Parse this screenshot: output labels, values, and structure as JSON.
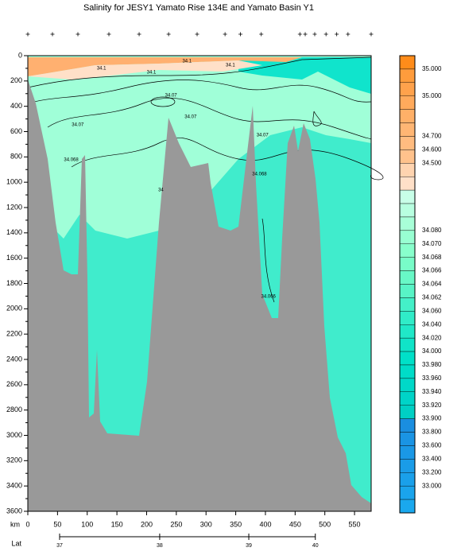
{
  "chart_data": {
    "type": "contour",
    "title": "Salinity for JESY1 Yamato Rise 134E and Yamato Basin Y1",
    "xlabel": "km",
    "x2label": "Lat",
    "xlim": [
      0,
      578
    ],
    "ylim": [
      0,
      3600
    ],
    "y_inverted": true,
    "xticks": [
      0,
      50,
      100,
      150,
      200,
      250,
      300,
      350,
      400,
      450,
      500,
      550
    ],
    "yticks": [
      0,
      200,
      400,
      600,
      800,
      1000,
      1200,
      1400,
      1600,
      1800,
      2000,
      2200,
      2400,
      2600,
      2800,
      3000,
      3200,
      3400,
      3600
    ],
    "lat_ticks": [
      {
        "value": 53.5,
        "label": "37"
      },
      {
        "value": 222,
        "label": "38"
      },
      {
        "value": 372,
        "label": "39"
      },
      {
        "value": 484,
        "label": "40"
      }
    ],
    "stations": [
      0,
      41.5,
      84.3,
      136.5,
      187.4,
      237,
      285,
      332,
      358,
      393,
      458,
      467,
      483,
      502,
      520,
      539,
      578
    ],
    "contour_labels": [
      {
        "label": "34.1",
        "x": 124,
        "y": 100
      },
      {
        "label": "34.1",
        "x": 208,
        "y": 132
      },
      {
        "label": "34.1",
        "x": 268,
        "y": 44
      },
      {
        "label": "34.1",
        "x": 341,
        "y": 75
      },
      {
        "label": "34.07",
        "x": 84,
        "y": 547
      },
      {
        "label": "34.068",
        "x": 73,
        "y": 823
      },
      {
        "label": "34.07",
        "x": 241,
        "y": 314
      },
      {
        "label": "34.07",
        "x": 274,
        "y": 484
      },
      {
        "label": "34.07",
        "x": 395,
        "y": 628
      },
      {
        "label": "34.068",
        "x": 390,
        "y": 936
      },
      {
        "label": "34.066",
        "x": 405,
        "y": 1903
      },
      {
        "label": "34",
        "x": 224,
        "y": 1062
      }
    ],
    "colorbar": [
      {
        "color": "#ff8c1a",
        "label": "35.000"
      },
      {
        "color": "#ff9c3c",
        "label": null
      },
      {
        "color": "#ffa24c",
        "label": "35.000"
      },
      {
        "color": "#ffaa5c",
        "label": null
      },
      {
        "color": "#ffb068",
        "label": null
      },
      {
        "color": "#ffb674",
        "label": "34.700"
      },
      {
        "color": "#ffbc80",
        "label": "34.600"
      },
      {
        "color": "#ffc28c",
        "label": "34.500"
      },
      {
        "color": "#ffd4b0",
        "label": null
      },
      {
        "color": "#ffe0c8",
        "label": null
      },
      {
        "color": "#c8ffe8",
        "label": null
      },
      {
        "color": "#b8ffe0",
        "label": null
      },
      {
        "color": "#a8ffd8",
        "label": "34.080"
      },
      {
        "color": "#98ffd2",
        "label": "34.070"
      },
      {
        "color": "#88ffcc",
        "label": "34.068"
      },
      {
        "color": "#78fcc8",
        "label": "34.066"
      },
      {
        "color": "#68f8c6",
        "label": "34.064"
      },
      {
        "color": "#58f4c6",
        "label": "34.062"
      },
      {
        "color": "#44f0c8",
        "label": "34.060"
      },
      {
        "color": "#30ecc8",
        "label": "34.040"
      },
      {
        "color": "#20e8c8",
        "label": "34.020"
      },
      {
        "color": "#10e4c8",
        "label": "34.000"
      },
      {
        "color": "#00e0c8",
        "label": "33.980"
      },
      {
        "color": "#00dcc8",
        "label": "33.960"
      },
      {
        "color": "#00d8c8",
        "label": "33.940"
      },
      {
        "color": "#00d4c8",
        "label": "33.920"
      },
      {
        "color": "#00d0c4",
        "label": "33.900"
      },
      {
        "color": "#1a8ee0",
        "label": "33.800"
      },
      {
        "color": "#1a94e4",
        "label": "33.600"
      },
      {
        "color": "#1a98e6",
        "label": "33.400"
      },
      {
        "color": "#1a9ce8",
        "label": "33.200"
      },
      {
        "color": "#1aa0ea",
        "label": "33.000"
      },
      {
        "color": "#1aa4ec",
        "label": null
      },
      {
        "color": "#1aa8ee",
        "label": null
      }
    ]
  }
}
